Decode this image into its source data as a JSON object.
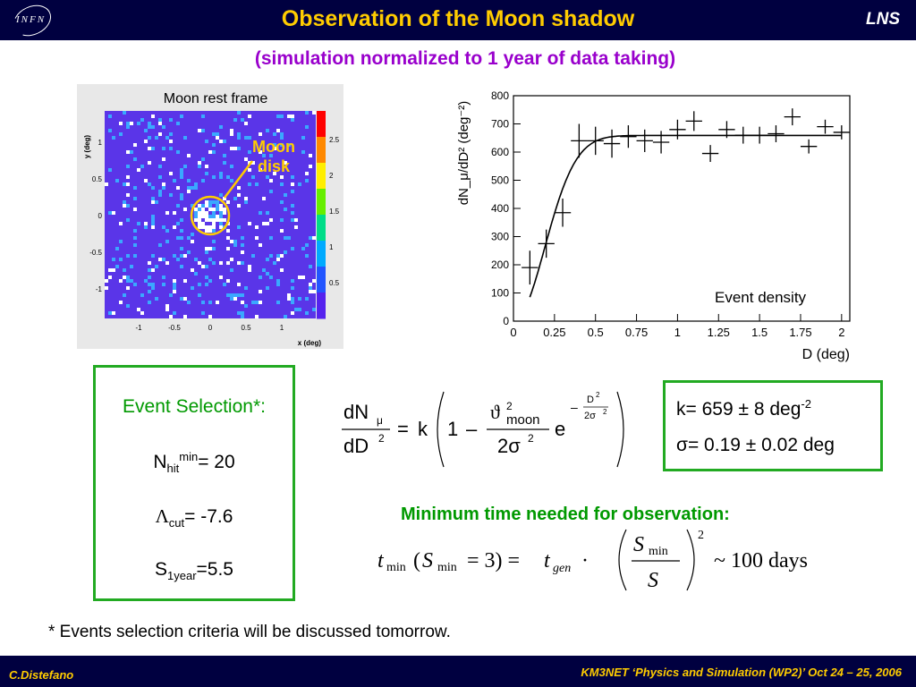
{
  "header": {
    "logo_text": "INFN",
    "title": "Observation of the Moon shadow",
    "lab": "LNS"
  },
  "subtitle": "(simulation normalized to 1 year of data taking)",
  "heatmap": {
    "panel_title": "Moon rest frame",
    "annotation": [
      "Moon",
      "disk"
    ],
    "x_axis_label": "x (deg)",
    "y_axis_label": "y (deg)",
    "x_ticks": [
      "-1",
      "-0.5",
      "0",
      "0.5",
      "1"
    ],
    "y_ticks": [
      "1",
      "0.5",
      "0",
      "-0.5",
      "-1"
    ],
    "colorbar_ticks": [
      "2.5",
      "2",
      "1.5",
      "1",
      "0.5"
    ],
    "colors": {
      "background": "#5a35e8",
      "hit_low": "#3aa8ff",
      "hit_mid": "#ffffff",
      "moon_circle": "#ffcc00",
      "palette": [
        "#5522ee",
        "#2255ff",
        "#00aaff",
        "#00dd88",
        "#66ee00",
        "#ffee00",
        "#ff8800",
        "#ff0000"
      ]
    }
  },
  "chart_data": {
    "type": "scatter",
    "title": "Event density",
    "xlabel": "D (deg)",
    "ylabel": "dN_μ/dD² (deg⁻²)",
    "xlim": [
      0,
      2.05
    ],
    "ylim": [
      0,
      800
    ],
    "x_ticks": [
      "0",
      "0.25",
      "0.5",
      "0.75",
      "1",
      "1.25",
      "1.5",
      "1.75",
      "2"
    ],
    "y_ticks": [
      "0",
      "100",
      "200",
      "300",
      "400",
      "500",
      "600",
      "700",
      "800"
    ],
    "grid": false,
    "series": [
      {
        "x": [
          0.1,
          0.2,
          0.3,
          0.4,
          0.5,
          0.6,
          0.7,
          0.8,
          0.9,
          1.0,
          1.1,
          1.2,
          1.3,
          1.4,
          1.5,
          1.6,
          1.7,
          1.8,
          1.9,
          2.0
        ],
        "y": [
          190,
          275,
          385,
          640,
          640,
          630,
          655,
          640,
          635,
          680,
          710,
          595,
          680,
          660,
          660,
          665,
          725,
          620,
          690,
          670
        ],
        "yerr": [
          60,
          50,
          50,
          60,
          50,
          50,
          40,
          40,
          40,
          35,
          35,
          30,
          30,
          30,
          30,
          30,
          30,
          25,
          25,
          25
        ],
        "xerr": 0.05
      }
    ],
    "fit": {
      "k": 659,
      "sigma": 0.19
    }
  },
  "equation": {
    "lhs_num": "dN",
    "lhs_sub": "μ",
    "lhs_den": "dD",
    "sup2": "2",
    "k": "k",
    "one": "1",
    "theta": "ϑ",
    "moon_sub": "moon",
    "two_sigma": "2σ",
    "e": "e",
    "exp_num": "D",
    "exp_den": "2σ"
  },
  "selection": {
    "heading": "Event Selection*:",
    "nhit_label": "N",
    "nhit_sub": "hit",
    "nhit_sup": "min",
    "nhit_value": "= 20",
    "lambda_label": "Λ",
    "lambda_sub": "cut",
    "lambda_value": "= -7.6",
    "s_label": "S",
    "s_sub": "1year",
    "s_value": "=5.5"
  },
  "results": {
    "k_text": "k= 659 ± 8 deg",
    "k_sup": "-2",
    "sigma_text": "σ= 0.19 ± 0.02 deg"
  },
  "min_time": {
    "title": "Minimum time needed for observation:",
    "t": "t",
    "min_sub": "min",
    "s": "S",
    "eq3": "= 3) =",
    "gen_sub": "gen",
    "dot": "·",
    "exponent": "2",
    "result": "~ 100 days"
  },
  "note": "* Events selection criteria will be discussed tomorrow.",
  "footer": {
    "author": "C.Distefano",
    "conference": "KM3NET ‘Physics and Simulation (WP2)’ Oct 24 – 25, 2006"
  }
}
